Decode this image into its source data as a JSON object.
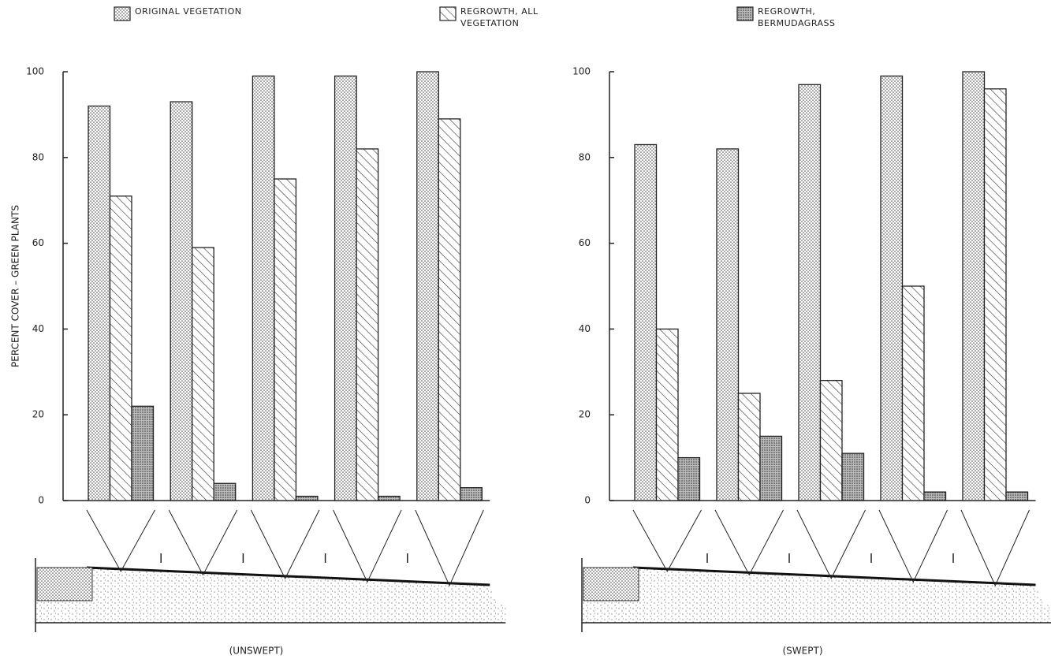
{
  "chart_data": [
    {
      "type": "bar",
      "ylabel": "PERCENT COVER – GREEN PLANTS",
      "xlabel": "(UNSWEPT)",
      "categories": [
        null,
        null,
        null,
        null,
        null
      ],
      "series": [
        {
          "name": "ORIGINAL VEGETATION",
          "color": "#222222",
          "fill": "stipple",
          "values": [
            92,
            93,
            99,
            99,
            100
          ]
        },
        {
          "name": "REGROWTH, ALL VEGETATION",
          "color": "#222222",
          "fill": "hatch",
          "values": [
            71,
            59,
            75,
            82,
            89
          ]
        },
        {
          "name": "REGROWTH, BERMUDAGRASS",
          "color": "#222222",
          "fill": "dense-stipple",
          "values": [
            22,
            4,
            1,
            1,
            3
          ]
        }
      ],
      "ylim": [
        0,
        100
      ],
      "yticks": [
        0,
        20,
        40,
        60,
        80,
        100
      ]
    },
    {
      "type": "bar",
      "xlabel": "(SWEPT)",
      "categories": [
        null,
        null,
        null,
        null,
        null
      ],
      "series": [
        {
          "color": "#222222",
          "fill": "stipple",
          "values": [
            83,
            82,
            97,
            99,
            100
          ]
        },
        {
          "color": "#222222",
          "fill": "hatch",
          "values": [
            40,
            25,
            28,
            50,
            96
          ]
        },
        {
          "color": "#222222",
          "fill": "dense-stipple",
          "values": [
            10,
            15,
            11,
            2,
            2
          ]
        }
      ],
      "ylim": [
        0,
        100
      ],
      "yticks": [
        0,
        20,
        40,
        60,
        80,
        100
      ]
    }
  ]
}
